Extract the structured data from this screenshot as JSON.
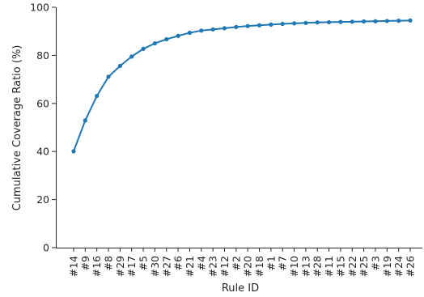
{
  "chart_data": {
    "type": "line",
    "title": "",
    "xlabel": "Rule ID",
    "ylabel": "Cumulative Coverage Ratio (%)",
    "ylim": [
      0,
      100
    ],
    "yticks": [
      0,
      20,
      40,
      60,
      80,
      100
    ],
    "grid": false,
    "legend": "none",
    "x": [
      "#14",
      "#9",
      "#16",
      "#8",
      "#29",
      "#17",
      "#5",
      "#30",
      "#27",
      "#6",
      "#21",
      "#4",
      "#23",
      "#12",
      "#2",
      "#20",
      "#18",
      "#1",
      "#7",
      "#10",
      "#13",
      "#28",
      "#11",
      "#15",
      "#22",
      "#25",
      "#3",
      "#19",
      "#24",
      "#26"
    ],
    "series": [
      {
        "name": "",
        "color": "#1f77b4",
        "values": [
          40.1,
          52.9,
          63.1,
          71.1,
          75.6,
          79.5,
          82.7,
          85.0,
          86.7,
          88.1,
          89.4,
          90.3,
          90.8,
          91.3,
          91.8,
          92.2,
          92.5,
          92.8,
          93.1,
          93.3,
          93.5,
          93.7,
          93.8,
          93.9,
          94.0,
          94.1,
          94.2,
          94.3,
          94.4,
          94.5
        ]
      }
    ]
  }
}
